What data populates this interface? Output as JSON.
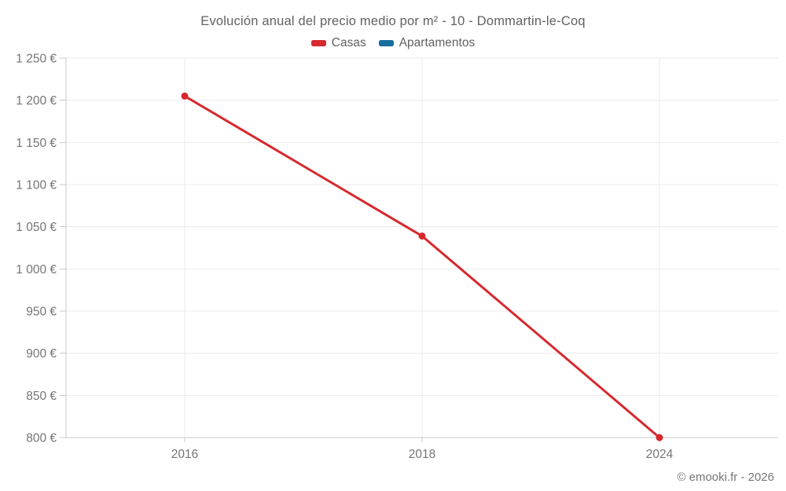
{
  "chart_data": {
    "type": "line",
    "title": "Evolución anual del precio medio por m² - 10 - Dommartin-le-Coq",
    "categories": [
      "2016",
      "2018",
      "2024"
    ],
    "series": [
      {
        "name": "Casas",
        "color": "#d7282d",
        "values": [
          1205,
          1039,
          800
        ]
      },
      {
        "name": "Apartamentos",
        "color": "#176f9e",
        "values": []
      }
    ],
    "ylim": [
      800,
      1250
    ],
    "ytick_step": 50,
    "y_unit": "€",
    "grid": true,
    "legend_position": "top"
  },
  "colors": {
    "grid": "#ebebeb",
    "axis": "#c9c9c9",
    "tick_text": "#757575",
    "title_text": "#616161"
  },
  "footer": {
    "text": "© emooki.fr - 2026"
  }
}
